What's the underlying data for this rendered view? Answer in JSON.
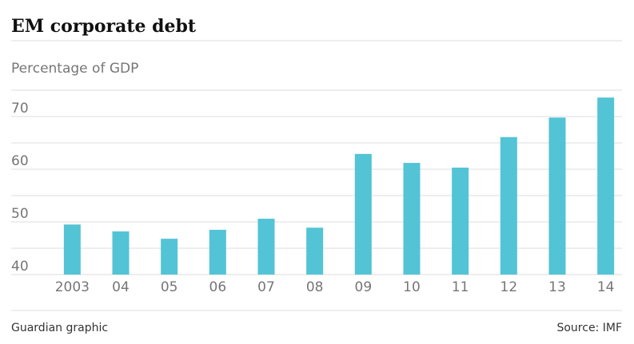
{
  "chart_data": {
    "type": "bar",
    "title": "EM corporate debt",
    "subtitle": "Percentage of GDP",
    "categories": [
      "2003",
      "04",
      "05",
      "06",
      "07",
      "08",
      "09",
      "10",
      "11",
      "12",
      "13",
      "14"
    ],
    "values": [
      49.5,
      48.2,
      46.8,
      48.5,
      50.6,
      48.9,
      62.9,
      61.2,
      60.3,
      66.1,
      69.8,
      73.6
    ],
    "color": "#52c4d6",
    "ylim": [
      40,
      75
    ],
    "yticks": [
      40,
      50,
      60,
      70
    ],
    "minor_yticks": [
      45,
      55,
      65,
      75
    ],
    "grid": true,
    "footer_left": "Guardian graphic",
    "source": "Source: IMF"
  }
}
